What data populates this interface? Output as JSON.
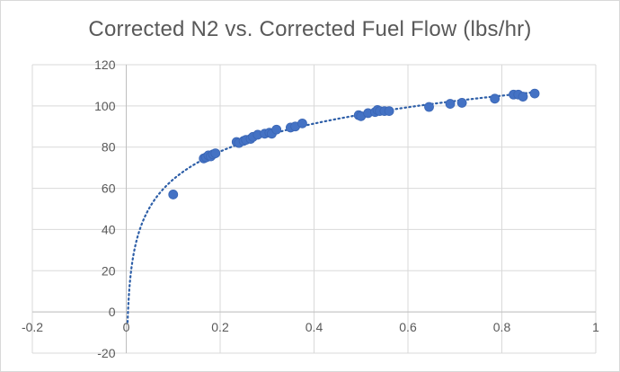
{
  "chart_data": {
    "type": "scatter",
    "title": "Corrected N2 vs. Corrected Fuel Flow (lbs/hr)",
    "xlabel": "",
    "ylabel": "",
    "xlim": [
      -0.2,
      1
    ],
    "ylim": [
      -20,
      120
    ],
    "x_ticks": [
      -0.2,
      0,
      0.2,
      0.4,
      0.6,
      0.8,
      1
    ],
    "y_ticks": [
      -20,
      0,
      20,
      40,
      60,
      80,
      100,
      120
    ],
    "x_tick_labels": [
      "-0.2",
      "0",
      "0.2",
      "0.4",
      "0.6",
      "0.8",
      "1"
    ],
    "y_tick_labels": [
      "-20",
      "0",
      "20",
      "40",
      "60",
      "80",
      "100",
      "120"
    ],
    "grid": {
      "horizontal": true,
      "vertical": true
    },
    "legend": "none",
    "colors": {
      "marker": "#4472c4",
      "trendline": "#2e5fa8",
      "grid": "#d9d9d9",
      "text": "#595959"
    },
    "trendline": {
      "style": "dotted",
      "kind": "logarithmic"
    },
    "series": [
      {
        "points": [
          [
            0.1,
            57
          ],
          [
            0.165,
            74.5
          ],
          [
            0.17,
            75
          ],
          [
            0.175,
            76
          ],
          [
            0.18,
            75.5
          ],
          [
            0.185,
            76.5
          ],
          [
            0.19,
            77
          ],
          [
            0.235,
            82.5
          ],
          [
            0.24,
            82
          ],
          [
            0.25,
            83
          ],
          [
            0.255,
            83.5
          ],
          [
            0.265,
            84
          ],
          [
            0.27,
            85
          ],
          [
            0.28,
            86
          ],
          [
            0.295,
            86.5
          ],
          [
            0.305,
            87
          ],
          [
            0.31,
            86.5
          ],
          [
            0.32,
            88.5
          ],
          [
            0.35,
            89.5
          ],
          [
            0.36,
            90
          ],
          [
            0.375,
            91.5
          ],
          [
            0.495,
            95.5
          ],
          [
            0.5,
            95
          ],
          [
            0.515,
            96.5
          ],
          [
            0.53,
            97
          ],
          [
            0.535,
            98
          ],
          [
            0.54,
            97.5
          ],
          [
            0.55,
            97.5
          ],
          [
            0.56,
            97.5
          ],
          [
            0.645,
            99.5
          ],
          [
            0.69,
            101
          ],
          [
            0.715,
            101.5
          ],
          [
            0.785,
            103.5
          ],
          [
            0.825,
            105.5
          ],
          [
            0.835,
            105.5
          ],
          [
            0.845,
            104.5
          ],
          [
            0.87,
            106
          ]
        ]
      }
    ]
  }
}
